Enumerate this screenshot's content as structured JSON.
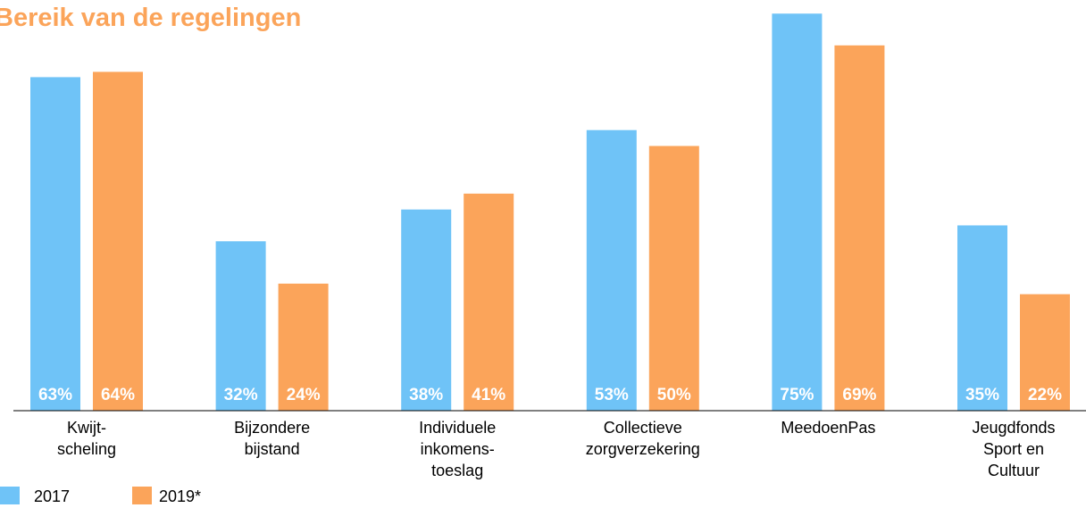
{
  "chart_data": {
    "type": "bar",
    "title": "Bereik van de regelingen",
    "categories": [
      "Kwijt-\nscheling",
      "Bijzondere\nbijstand",
      "Individuele\ninkomens-\ntoeslag",
      "Collectieve\nzorgverzekering",
      "MeedoenPas",
      "Jeugdfonds\nSport en\nCultuur"
    ],
    "series": [
      {
        "name": "2017",
        "color": "#6fc3f7",
        "values": [
          63,
          32,
          38,
          53,
          75,
          35
        ],
        "value_labels": [
          "63%",
          "32%",
          "38%",
          "53%",
          "75%",
          "35%"
        ]
      },
      {
        "name": "2019*",
        "color": "#fba45a",
        "values": [
          64,
          24,
          41,
          50,
          69,
          22
        ],
        "value_labels": [
          "64%",
          "24%",
          "41%",
          "50%",
          "69%",
          "22%"
        ]
      }
    ]
  }
}
